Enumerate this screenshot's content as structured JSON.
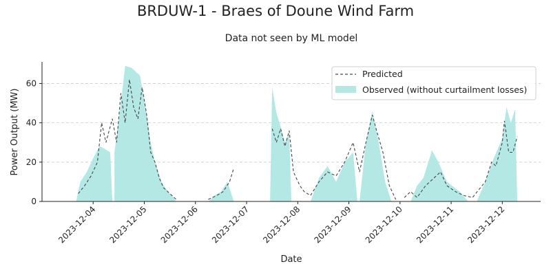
{
  "chart_data": {
    "type": "area",
    "title": "BRDUW-1 - Braes of Doune Wind Farm",
    "subtitle": "Data not seen by ML model",
    "xlabel": "Date",
    "ylabel": "Power Output (MW)",
    "x_axis": "date",
    "xlim": [
      "2023-12-03 00:00",
      "2023-12-12 18:00"
    ],
    "ylim": [
      0,
      71
    ],
    "yticks": [
      0,
      20,
      40,
      60
    ],
    "xticks": [
      "2023-12-04",
      "2023-12-05",
      "2023-12-06",
      "2023-12-07",
      "2023-12-08",
      "2023-12-09",
      "2023-12-10",
      "2023-12-11",
      "2023-12-12"
    ],
    "grid": "horizontal dashed",
    "legend": "top-right",
    "series": [
      {
        "name": "Predicted",
        "style": "dashed line",
        "color": "#444444",
        "segments": [
          [
            [
              "2023-12-03 17:00",
              4
            ],
            [
              "2023-12-03 20:00",
              8
            ],
            [
              "2023-12-03 23:00",
              13
            ],
            [
              "2023-12-04 02:00",
              20
            ],
            [
              "2023-12-04 04:00",
              40
            ],
            [
              "2023-12-04 06:00",
              30
            ],
            [
              "2023-12-04 09:00",
              42
            ],
            [
              "2023-12-04 11:00",
              30
            ],
            [
              "2023-12-04 13:00",
              55
            ],
            [
              "2023-12-04 15:00",
              40
            ],
            [
              "2023-12-04 17:00",
              62
            ],
            [
              "2023-12-04 19:00",
              48
            ],
            [
              "2023-12-04 21:00",
              42
            ],
            [
              "2023-12-04 23:00",
              58
            ],
            [
              "2023-12-05 01:00",
              45
            ],
            [
              "2023-12-05 03:00",
              25
            ],
            [
              "2023-12-05 05:00",
              20
            ],
            [
              "2023-12-05 07:00",
              12
            ],
            [
              "2023-12-05 09:00",
              7
            ],
            [
              "2023-12-05 12:00",
              4
            ],
            [
              "2023-12-05 15:00",
              1
            ]
          ],
          [
            [
              "2023-12-06 06:00",
              1
            ],
            [
              "2023-12-06 10:00",
              3
            ],
            [
              "2023-12-06 13:00",
              5
            ],
            [
              "2023-12-06 16:00",
              10
            ],
            [
              "2023-12-06 18:00",
              17
            ]
          ],
          [
            [
              "2023-12-07 12:00",
              37
            ],
            [
              "2023-12-07 14:00",
              30
            ],
            [
              "2023-12-07 16:00",
              37
            ],
            [
              "2023-12-07 18:00",
              28
            ],
            [
              "2023-12-07 20:00",
              36
            ],
            [
              "2023-12-07 22:00",
              15
            ],
            [
              "2023-12-08 01:00",
              8
            ],
            [
              "2023-12-08 03:00",
              5
            ],
            [
              "2023-12-08 06:00",
              3
            ],
            [
              "2023-12-08 10:00",
              10
            ],
            [
              "2023-12-08 14:00",
              15
            ],
            [
              "2023-12-08 18:00",
              13
            ],
            [
              "2023-12-08 22:00",
              20
            ],
            [
              "2023-12-09 02:00",
              30
            ],
            [
              "2023-12-09 05:00",
              15
            ],
            [
              "2023-12-09 08:00",
              30
            ],
            [
              "2023-12-09 11:00",
              44
            ],
            [
              "2023-12-09 13:00",
              36
            ],
            [
              "2023-12-09 16:00",
              25
            ],
            [
              "2023-12-09 19:00",
              8
            ],
            [
              "2023-12-09 22:00",
              1
            ]
          ],
          [
            [
              "2023-12-10 02:00",
              2
            ],
            [
              "2023-12-10 05:00",
              5
            ],
            [
              "2023-12-10 08:00",
              2
            ],
            [
              "2023-12-10 12:00",
              8
            ],
            [
              "2023-12-10 16:00",
              12
            ],
            [
              "2023-12-10 19:00",
              15
            ],
            [
              "2023-12-10 22:00",
              8
            ],
            [
              "2023-12-11 02:00",
              5
            ],
            [
              "2023-12-11 06:00",
              3
            ],
            [
              "2023-12-11 10:00",
              2
            ],
            [
              "2023-12-11 13:00",
              6
            ],
            [
              "2023-12-11 16:00",
              10
            ],
            [
              "2023-12-11 19:00",
              20
            ],
            [
              "2023-12-11 21:00",
              18
            ],
            [
              "2023-12-12 00:00",
              30
            ],
            [
              "2023-12-12 01:00",
              41
            ],
            [
              "2023-12-12 03:00",
              25
            ],
            [
              "2023-12-12 05:00",
              25
            ],
            [
              "2023-12-12 07:00",
              33
            ]
          ]
        ]
      },
      {
        "name": "Observed (without curtailment losses)",
        "style": "filled area",
        "color": "#b3e8e5",
        "segments": [
          [
            [
              "2023-12-03 16:00",
              0
            ],
            [
              "2023-12-03 18:00",
              10
            ],
            [
              "2023-12-03 21:00",
              15
            ],
            [
              "2023-12-04 00:00",
              22
            ],
            [
              "2023-12-04 03:00",
              28
            ],
            [
              "2023-12-04 05:00",
              27
            ],
            [
              "2023-12-04 08:00",
              25
            ],
            [
              "2023-12-04 09:00",
              0
            ]
          ],
          [
            [
              "2023-12-04 10:00",
              25
            ],
            [
              "2023-12-04 13:00",
              50
            ],
            [
              "2023-12-04 15:00",
              69
            ],
            [
              "2023-12-04 18:00",
              68
            ],
            [
              "2023-12-04 20:00",
              66
            ],
            [
              "2023-12-04 22:00",
              64
            ],
            [
              "2023-12-05 01:00",
              45
            ],
            [
              "2023-12-05 03:00",
              30
            ],
            [
              "2023-12-05 05:00",
              20
            ],
            [
              "2023-12-05 08:00",
              10
            ],
            [
              "2023-12-05 11:00",
              5
            ],
            [
              "2023-12-05 13:00",
              3
            ],
            [
              "2023-12-05 15:00",
              0
            ]
          ],
          [
            [
              "2023-12-06 06:00",
              0
            ],
            [
              "2023-12-06 09:00",
              3
            ],
            [
              "2023-12-06 12:00",
              5
            ],
            [
              "2023-12-06 15:00",
              10
            ],
            [
              "2023-12-06 18:00",
              0
            ]
          ],
          [
            [
              "2023-12-07 11:00",
              0
            ],
            [
              "2023-12-07 12:00",
              58
            ],
            [
              "2023-12-07 14:00",
              45
            ],
            [
              "2023-12-07 16:00",
              38
            ],
            [
              "2023-12-07 18:00",
              30
            ],
            [
              "2023-12-07 20:00",
              35
            ],
            [
              "2023-12-07 21:00",
              0
            ]
          ],
          [
            [
              "2023-12-08 06:00",
              0
            ],
            [
              "2023-12-08 10:00",
              12
            ],
            [
              "2023-12-08 14:00",
              18
            ],
            [
              "2023-12-08 18:00",
              10
            ],
            [
              "2023-12-08 22:00",
              20
            ],
            [
              "2023-12-09 02:00",
              25
            ],
            [
              "2023-12-09 04:00",
              0
            ]
          ],
          [
            [
              "2023-12-09 05:00",
              0
            ],
            [
              "2023-12-09 08:00",
              30
            ],
            [
              "2023-12-09 11:00",
              46
            ],
            [
              "2023-12-09 14:00",
              30
            ],
            [
              "2023-12-09 17:00",
              10
            ],
            [
              "2023-12-09 20:00",
              0
            ]
          ],
          [
            [
              "2023-12-10 05:00",
              0
            ],
            [
              "2023-12-10 08:00",
              8
            ],
            [
              "2023-12-10 11:00",
              12
            ],
            [
              "2023-12-10 15:00",
              26
            ],
            [
              "2023-12-10 18:00",
              20
            ],
            [
              "2023-12-10 22:00",
              10
            ],
            [
              "2023-12-11 04:00",
              5
            ],
            [
              "2023-12-11 08:00",
              0
            ]
          ],
          [
            [
              "2023-12-11 12:00",
              0
            ],
            [
              "2023-12-11 16:00",
              10
            ],
            [
              "2023-12-11 20:00",
              22
            ],
            [
              "2023-12-12 00:00",
              32
            ],
            [
              "2023-12-12 02:00",
              48
            ],
            [
              "2023-12-12 04:00",
              40
            ],
            [
              "2023-12-12 06:00",
              47
            ],
            [
              "2023-12-12 07:00",
              0
            ]
          ]
        ]
      }
    ]
  }
}
